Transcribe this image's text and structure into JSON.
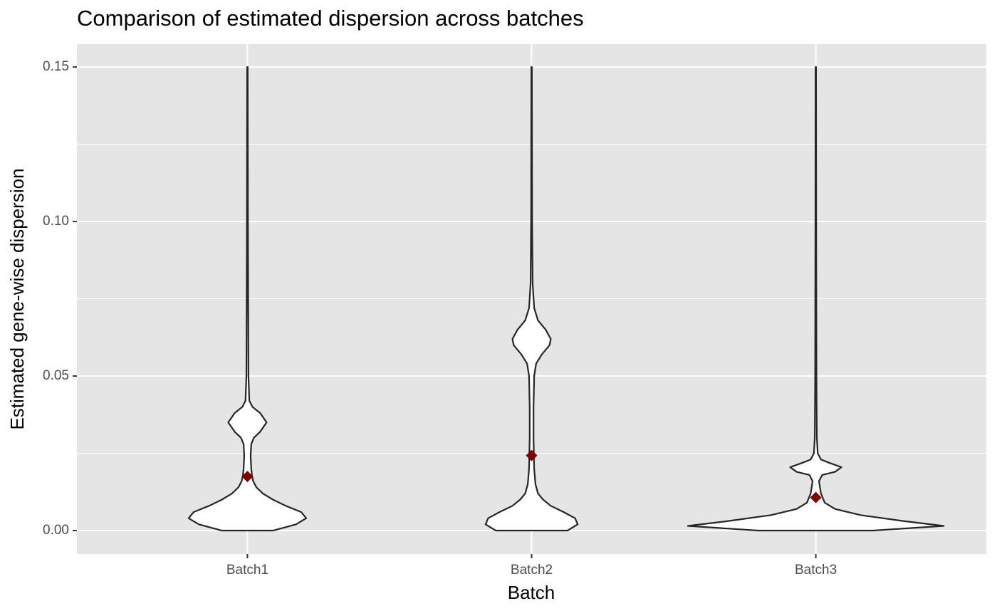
{
  "chart_data": {
    "type": "violin",
    "title": "Comparison of estimated dispersion across batches",
    "x_label": "Batch",
    "y_label": "Estimated gene-wise dispersion",
    "categories": [
      "Batch1",
      "Batch2",
      "Batch3"
    ],
    "density": [
      {
        "y": [
          0,
          0.002,
          0.004,
          0.006,
          0.008,
          0.01,
          0.012,
          0.014,
          0.016,
          0.018,
          0.02,
          0.024,
          0.028,
          0.03,
          0.032,
          0.035,
          0.038,
          0.04,
          0.042,
          0.05,
          0.1,
          0.15
        ],
        "width": [
          0.2,
          0.38,
          0.46,
          0.42,
          0.3,
          0.2,
          0.12,
          0.07,
          0.045,
          0.035,
          0.03,
          0.025,
          0.03,
          0.05,
          0.1,
          0.15,
          0.1,
          0.04,
          0.015,
          0.008,
          0.004,
          0.002
        ]
      },
      {
        "y": [
          0,
          0.002,
          0.004,
          0.006,
          0.008,
          0.01,
          0.012,
          0.015,
          0.02,
          0.03,
          0.04,
          0.05,
          0.054,
          0.057,
          0.06,
          0.062,
          0.065,
          0.068,
          0.072,
          0.08,
          0.1,
          0.15
        ],
        "width": [
          0.28,
          0.36,
          0.34,
          0.25,
          0.15,
          0.09,
          0.05,
          0.03,
          0.02,
          0.015,
          0.015,
          0.02,
          0.035,
          0.08,
          0.14,
          0.15,
          0.11,
          0.05,
          0.02,
          0.008,
          0.004,
          0.002
        ]
      },
      {
        "y": [
          0,
          0.0015,
          0.003,
          0.005,
          0.007,
          0.009,
          0.012,
          0.016,
          0.018,
          0.019,
          0.0205,
          0.022,
          0.023,
          0.025,
          0.03,
          0.05,
          0.1,
          0.15
        ],
        "width": [
          0.45,
          1.0,
          0.7,
          0.35,
          0.15,
          0.07,
          0.04,
          0.025,
          0.05,
          0.15,
          0.2,
          0.1,
          0.04,
          0.015,
          0.008,
          0.005,
          0.003,
          0.002
        ]
      }
    ],
    "means": [
      0.0175,
      0.0243,
      0.0107
    ],
    "fill": "#ffffff",
    "outline": "#262626",
    "mean_color": "#7f0000",
    "ylim": [
      -0.0076,
      0.1574
    ],
    "yticks": [
      {
        "value": 0,
        "label": "0.00"
      },
      {
        "value": 0.05,
        "label": "0.05"
      },
      {
        "value": 0.1,
        "label": "0.10"
      },
      {
        "value": 0.15,
        "label": "0.15"
      }
    ],
    "grid": true
  }
}
